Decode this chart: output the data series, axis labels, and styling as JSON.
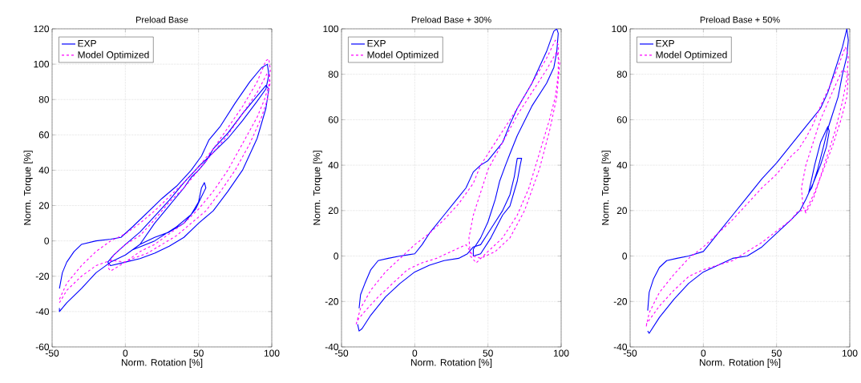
{
  "chart_data": [
    {
      "type": "line",
      "title": "Preload Base",
      "xlabel": "Norm. Rotation [%]",
      "ylabel": "Norm. Torque [%]",
      "xlim": [
        -50,
        100
      ],
      "ylim": [
        -60,
        120
      ],
      "xticks": [
        -50,
        0,
        50,
        100
      ],
      "yticks": [
        -60,
        -40,
        -20,
        0,
        20,
        40,
        60,
        80,
        100,
        120
      ],
      "grid": true,
      "legend": "top left",
      "marker": "none",
      "series": [
        {
          "name": "EXP",
          "color": "#0000ff",
          "line_style": "solid",
          "x": [
            -45,
            -43,
            -40,
            -35,
            -30,
            -20,
            -10,
            -3,
            5,
            15,
            25,
            35,
            45,
            52,
            57,
            65,
            75,
            85,
            93,
            97,
            98,
            96,
            90,
            80,
            70,
            60,
            50,
            40,
            30,
            20,
            10,
            0,
            -8,
            -12,
            -10,
            0,
            10,
            20,
            30,
            40,
            50,
            60,
            70,
            80,
            90,
            96,
            98,
            96,
            90,
            80,
            70,
            60,
            55,
            50,
            45,
            40,
            30,
            20,
            10,
            5,
            20,
            35,
            45,
            50,
            52,
            54,
            55,
            52,
            48,
            40,
            30,
            20,
            10,
            0,
            -10,
            -20,
            -30,
            -40,
            -45,
            -45
          ],
          "values": [
            -27,
            -18,
            -12,
            -6,
            -2,
            0,
            1,
            2,
            8,
            16,
            24,
            31,
            40,
            48,
            57,
            65,
            78,
            90,
            98,
            100,
            94,
            86,
            79,
            68,
            58,
            50,
            42,
            33,
            23,
            14,
            5,
            -2,
            -8,
            -12,
            -14,
            -12,
            -10,
            -7,
            -3,
            2,
            10,
            17,
            28,
            40,
            58,
            75,
            86,
            88,
            82,
            72,
            61,
            52,
            45,
            40,
            36,
            30,
            20,
            10,
            -2,
            -5,
            0,
            8,
            15,
            22,
            30,
            33,
            30,
            25,
            18,
            10,
            5,
            2,
            -2,
            -8,
            -12,
            -18,
            -27,
            -35,
            -40,
            -38
          ]
        },
        {
          "name": "Model Optimized",
          "color": "#ff00ff",
          "line_style": "dashed",
          "x": [
            -45,
            -40,
            -30,
            -20,
            -10,
            0,
            10,
            20,
            30,
            40,
            50,
            60,
            70,
            80,
            90,
            96,
            98,
            99,
            98,
            95,
            90,
            80,
            70,
            60,
            50,
            40,
            30,
            20,
            10,
            0,
            -10,
            -12,
            -8,
            0,
            10,
            20,
            30,
            40,
            50,
            60,
            70,
            80,
            90,
            97,
            99,
            97,
            93,
            85,
            75,
            65,
            55,
            45,
            35,
            25,
            15,
            5,
            0,
            -10,
            -20,
            -30,
            -40,
            -45
          ],
          "values": [
            -33,
            -24,
            -14,
            -6,
            0,
            4,
            10,
            17,
            25,
            33,
            42,
            52,
            64,
            76,
            90,
            102,
            103,
            97,
            88,
            80,
            70,
            55,
            40,
            28,
            18,
            10,
            4,
            -2,
            -6,
            -12,
            -17,
            -15,
            -8,
            -2,
            3,
            12,
            22,
            30,
            40,
            50,
            60,
            72,
            84,
            95,
            90,
            80,
            70,
            55,
            40,
            28,
            17,
            10,
            3,
            -2,
            -7,
            -10,
            -12,
            -11,
            -14,
            -20,
            -28,
            -35
          ]
        }
      ]
    },
    {
      "type": "line",
      "title": "Preload Base + 30%",
      "xlabel": "Norm. Rotation [%]",
      "ylabel": "Norm. Torque [%]",
      "xlim": [
        -50,
        100
      ],
      "ylim": [
        -40,
        100
      ],
      "xticks": [
        -50,
        0,
        50,
        100
      ],
      "yticks": [
        -40,
        -20,
        0,
        20,
        40,
        60,
        80,
        100
      ],
      "grid": true,
      "legend": "top left",
      "marker": "none",
      "series": [
        {
          "name": "EXP",
          "color": "#0000ff",
          "line_style": "solid",
          "x": [
            -38,
            -37,
            -34,
            -30,
            -25,
            -18,
            -10,
            0,
            5,
            10,
            20,
            30,
            35,
            40,
            45,
            50,
            55,
            60,
            65,
            70,
            80,
            90,
            95,
            97,
            98,
            97,
            95,
            90,
            80,
            70,
            65,
            62,
            58,
            55,
            50,
            45,
            40,
            40,
            45,
            52,
            60,
            65,
            70,
            72,
            73,
            70,
            68,
            65,
            60,
            55,
            50,
            45,
            40,
            36,
            30,
            20,
            10,
            0,
            -10,
            -20,
            -30,
            -36,
            -38,
            -39
          ],
          "values": [
            -23,
            -17,
            -12,
            -6,
            -2,
            -1,
            0,
            1,
            5,
            10,
            18,
            26,
            30,
            37,
            40,
            42,
            46,
            50,
            58,
            65,
            76,
            90,
            99,
            100,
            98,
            90,
            83,
            76,
            66,
            53,
            45,
            40,
            33,
            25,
            15,
            8,
            3,
            0,
            1,
            8,
            18,
            22,
            33,
            40,
            43,
            43,
            35,
            27,
            20,
            15,
            10,
            5,
            4,
            1,
            -1,
            -2,
            -4,
            -7,
            -12,
            -18,
            -26,
            -32,
            -33,
            -30
          ]
        },
        {
          "name": "Model Optimized",
          "color": "#ff00ff",
          "line_style": "dashed",
          "x": [
            -40,
            -37,
            -30,
            -20,
            -10,
            0,
            10,
            20,
            30,
            40,
            45,
            50,
            60,
            70,
            80,
            90,
            96,
            98,
            98,
            96,
            92,
            85,
            78,
            70,
            60,
            50,
            42,
            38,
            37,
            40,
            45,
            50,
            60,
            70,
            80,
            90,
            97,
            99,
            97,
            92,
            85,
            75,
            65,
            55,
            45,
            40,
            35,
            25,
            15,
            5,
            -5,
            -15,
            -25,
            -35,
            -40
          ],
          "values": [
            -30,
            -23,
            -15,
            -7,
            -1,
            5,
            10,
            16,
            23,
            32,
            40,
            45,
            55,
            65,
            76,
            87,
            95,
            93,
            80,
            70,
            60,
            45,
            30,
            18,
            8,
            2,
            -3,
            0,
            8,
            18,
            28,
            38,
            50,
            62,
            72,
            82,
            90,
            85,
            70,
            55,
            38,
            20,
            8,
            2,
            -1,
            0,
            5,
            2,
            -1,
            -3,
            -6,
            -12,
            -18,
            -25,
            -29
          ]
        }
      ]
    },
    {
      "type": "line",
      "title": "Preload Base + 50%",
      "xlabel": "Norm. Rotation [%]",
      "ylabel": "Norm. Torque [%]",
      "xlim": [
        -50,
        100
      ],
      "ylim": [
        -40,
        100
      ],
      "xticks": [
        -50,
        0,
        50,
        100
      ],
      "yticks": [
        -40,
        -20,
        0,
        20,
        40,
        60,
        80,
        100
      ],
      "grid": true,
      "legend": "top left",
      "marker": "none",
      "series": [
        {
          "name": "EXP",
          "color": "#0000ff",
          "line_style": "solid",
          "x": [
            -38,
            -37,
            -34,
            -30,
            -25,
            -18,
            -10,
            0,
            5,
            10,
            20,
            30,
            40,
            50,
            60,
            70,
            80,
            85,
            90,
            95,
            98,
            99,
            98,
            95,
            92,
            88,
            85,
            82,
            78,
            74,
            72,
            76,
            80,
            85,
            86,
            84,
            80,
            75,
            70,
            66,
            60,
            50,
            40,
            30,
            20,
            10,
            0,
            -10,
            -20,
            -30,
            -37,
            -38
          ],
          "values": [
            -24,
            -16,
            -10,
            -5,
            -2,
            -1,
            0,
            2,
            6,
            10,
            18,
            26,
            34,
            41,
            49,
            57,
            65,
            72,
            82,
            92,
            100,
            95,
            88,
            80,
            70,
            62,
            56,
            48,
            38,
            30,
            28,
            40,
            50,
            57,
            55,
            48,
            40,
            32,
            25,
            20,
            16,
            10,
            4,
            0,
            -1,
            -4,
            -7,
            -12,
            -19,
            -27,
            -34,
            -33
          ]
        },
        {
          "name": "Model Optimized",
          "color": "#ff00ff",
          "line_style": "dashed",
          "x": [
            -39,
            -37,
            -30,
            -20,
            -10,
            0,
            10,
            20,
            30,
            40,
            50,
            60,
            65,
            70,
            75,
            80,
            90,
            97,
            99,
            98,
            95,
            90,
            85,
            80,
            75,
            70,
            68,
            67,
            70,
            75,
            80,
            88,
            95,
            99,
            98,
            94,
            88,
            82,
            76,
            70,
            65,
            60,
            50,
            40,
            30,
            20,
            10,
            0,
            -10,
            -20,
            -30,
            -39
          ],
          "values": [
            -31,
            -25,
            -16,
            -8,
            -1,
            4,
            10,
            16,
            23,
            30,
            36,
            44,
            47,
            52,
            58,
            66,
            80,
            92,
            88,
            78,
            68,
            55,
            45,
            35,
            25,
            19,
            22,
            30,
            40,
            50,
            60,
            72,
            82,
            80,
            70,
            60,
            48,
            38,
            28,
            20,
            20,
            16,
            11,
            6,
            2,
            -2,
            -4,
            -6,
            -9,
            -15,
            -22,
            -30
          ]
        }
      ]
    }
  ]
}
